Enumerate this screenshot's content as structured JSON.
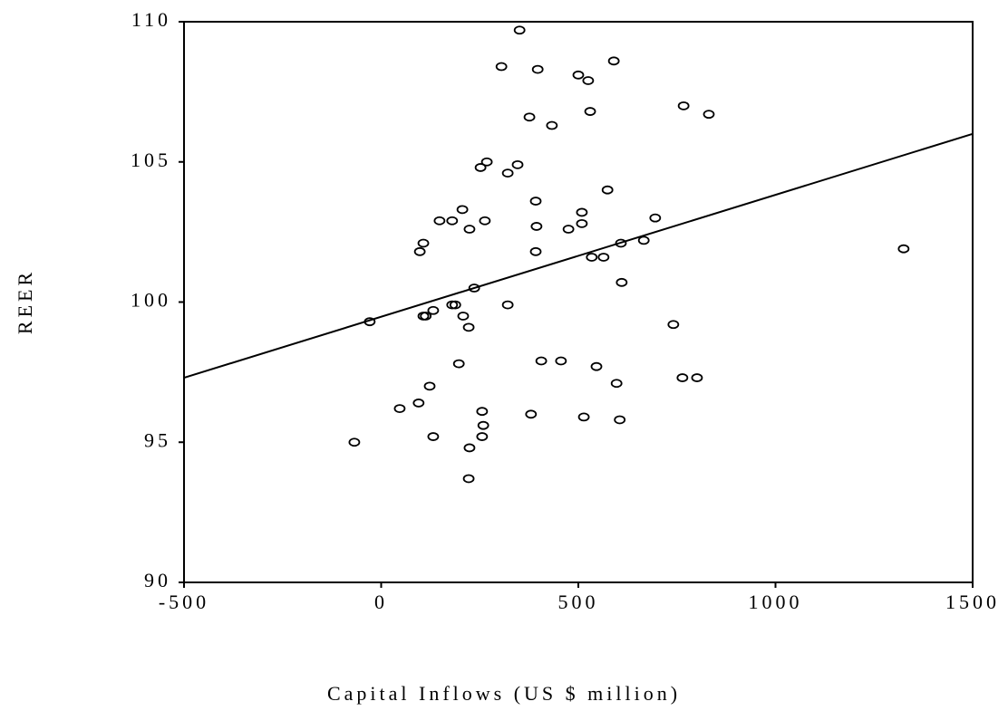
{
  "chart_data": {
    "type": "scatter",
    "x_label": "Capital Inflows (US $ million)",
    "y_label": "REER",
    "x": [
      351,
      305,
      397,
      500,
      525,
      590,
      376,
      433,
      530,
      767,
      831,
      268,
      252,
      346,
      321,
      574,
      392,
      206,
      148,
      180,
      263,
      224,
      394,
      509,
      509,
      475,
      695,
      107,
      98,
      392,
      608,
      666,
      534,
      564,
      1325,
      236,
      610,
      321,
      180,
      188,
      132,
      107,
      113,
      208,
      222,
      -29,
      741,
      197,
      406,
      456,
      546,
      764,
      801,
      597,
      123,
      95,
      47,
      256,
      380,
      259,
      514,
      605,
      -68,
      132,
      256,
      224,
      222
    ],
    "values": [
      109.7,
      108.4,
      108.3,
      108.1,
      107.9,
      108.6,
      106.6,
      106.3,
      106.8,
      107.0,
      106.7,
      105.0,
      104.8,
      104.9,
      104.6,
      104.0,
      103.6,
      103.3,
      102.9,
      102.9,
      102.9,
      102.6,
      102.7,
      103.2,
      102.8,
      102.6,
      103.0,
      102.1,
      101.8,
      101.8,
      102.1,
      102.2,
      101.6,
      101.6,
      101.9,
      100.5,
      100.7,
      99.9,
      99.9,
      99.9,
      99.7,
      99.5,
      99.5,
      99.5,
      99.1,
      99.3,
      99.2,
      97.8,
      97.9,
      97.9,
      97.7,
      97.3,
      97.3,
      97.1,
      97.0,
      96.4,
      96.2,
      96.1,
      96.0,
      95.6,
      95.9,
      95.8,
      95.0,
      95.2,
      95.2,
      94.8,
      93.7
    ],
    "fit_line": {
      "x": [
        -500,
        1500
      ],
      "y": [
        97.3,
        106.0
      ]
    },
    "color": "#000000",
    "xlim": [
      -500,
      1500
    ],
    "xticks": [
      -500,
      0,
      500,
      1000,
      1500
    ],
    "ylim": [
      90,
      110
    ],
    "yticks": [
      90,
      95,
      100,
      105,
      110
    ],
    "grid": false
  }
}
